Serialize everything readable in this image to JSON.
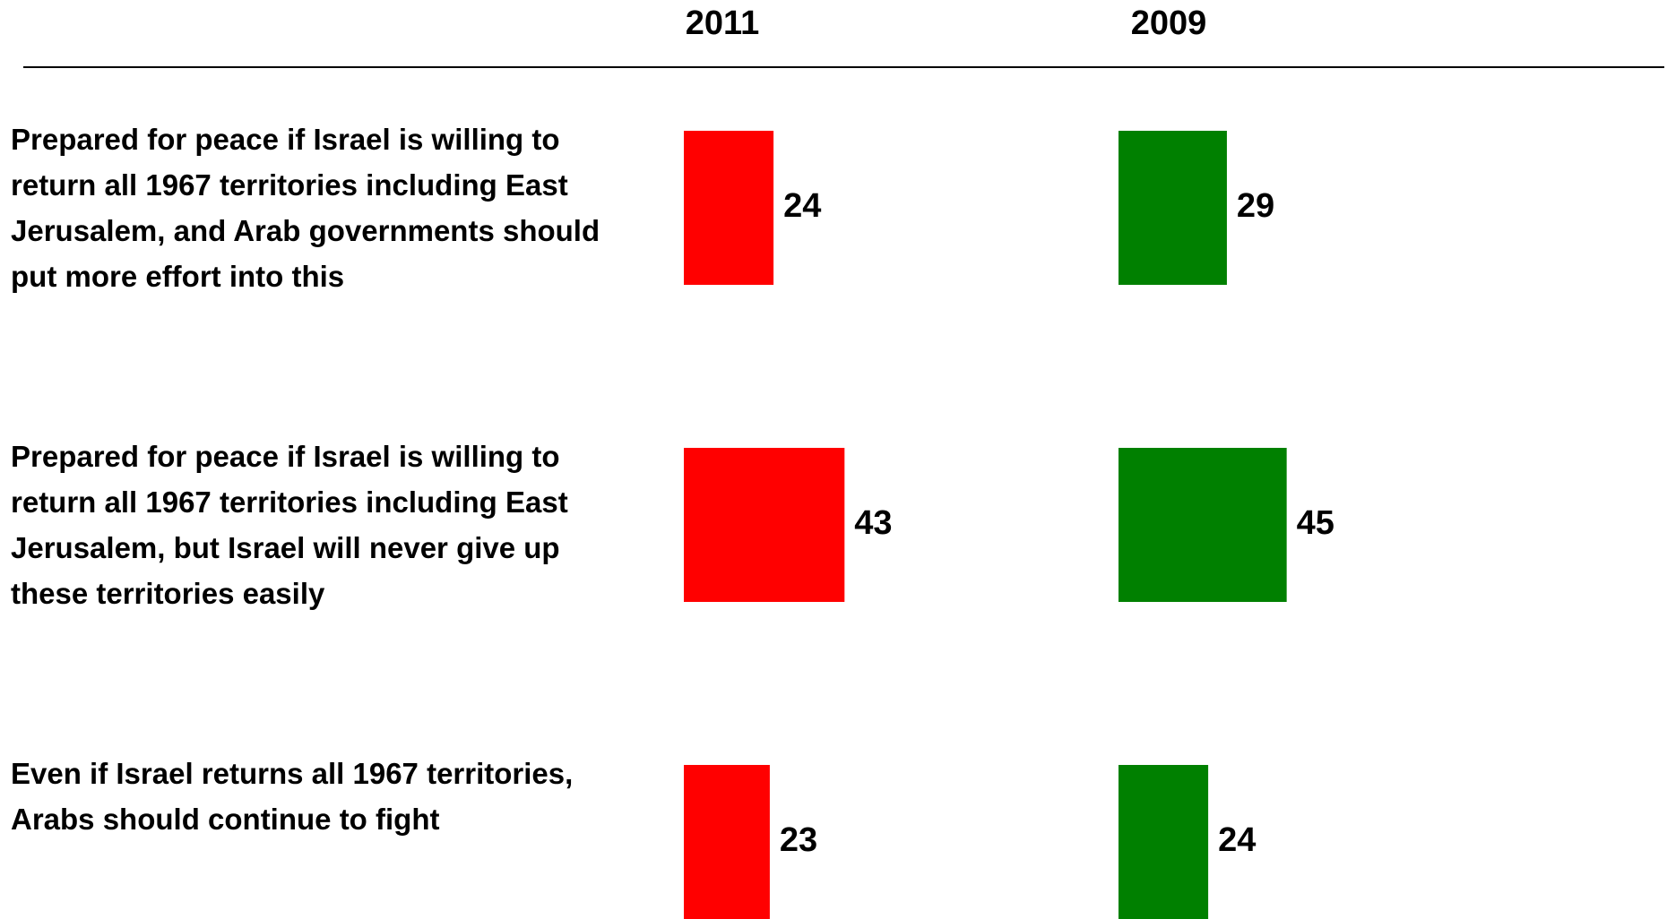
{
  "chart_data": {
    "type": "bar",
    "orientation": "horizontal",
    "categories": [
      "Prepared for peace if Israel is willing to return all 1967 territories including East Jerusalem, and Arab governments should put more effort into this",
      "Prepared for peace if Israel is willing to return all 1967 territories including East Jerusalem, but Israel will never give up these territories easily",
      "Even if Israel returns all 1967 territories, Arabs should continue to fight"
    ],
    "series": [
      {
        "name": "2011",
        "color": "#ff0000",
        "values": [
          24,
          43,
          23
        ]
      },
      {
        "name": "2009",
        "color": "#008000",
        "values": [
          29,
          45,
          24
        ]
      }
    ]
  }
}
